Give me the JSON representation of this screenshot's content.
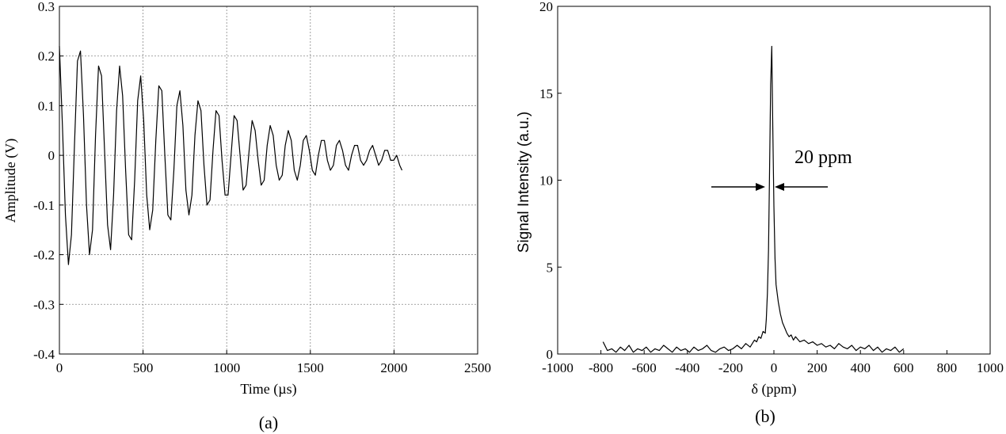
{
  "chart_data": [
    {
      "type": "line",
      "caption": "(a)",
      "xlabel": "Time (µs)",
      "ylabel": "Amplitude (V)",
      "xlim": [
        0,
        2500
      ],
      "ylim": [
        -0.4,
        0.3
      ],
      "x_ticks": [
        "0",
        "500",
        "1000",
        "1500",
        "2000",
        "2500"
      ],
      "y_ticks": [
        "-0.4",
        "-0.3",
        "-0.2",
        "-0.1",
        "0",
        "0.1",
        "0.2",
        "0.3"
      ],
      "grid": true,
      "series": [
        {
          "x": [
            0,
            18,
            36,
            54,
            72,
            90,
            108,
            126,
            144,
            162,
            180,
            198,
            216,
            234,
            252,
            270,
            288,
            306,
            324,
            342,
            360,
            378,
            396,
            414,
            432,
            450,
            468,
            486,
            504,
            522,
            540,
            558,
            576,
            594,
            612,
            630,
            648,
            666,
            684,
            702,
            720,
            738,
            756,
            774,
            792,
            810,
            828,
            846,
            864,
            882,
            900,
            918,
            936,
            954,
            972,
            990,
            1008,
            1026,
            1044,
            1062,
            1080,
            1098,
            1116,
            1134,
            1152,
            1170,
            1188,
            1206,
            1224,
            1242,
            1260,
            1278,
            1296,
            1314,
            1332,
            1350,
            1368,
            1386,
            1404,
            1422,
            1440,
            1458,
            1476,
            1494,
            1512,
            1530,
            1548,
            1566,
            1584,
            1602,
            1620,
            1638,
            1656,
            1674,
            1692,
            1710,
            1728,
            1746,
            1764,
            1782,
            1800,
            1818,
            1836,
            1854,
            1872,
            1890,
            1908,
            1926,
            1944,
            1962,
            1980,
            1998,
            2016,
            2034,
            2048
          ],
          "y": [
            0.22,
            0.06,
            -0.12,
            -0.22,
            -0.16,
            0.02,
            0.19,
            0.21,
            0.08,
            -0.1,
            -0.2,
            -0.15,
            0.04,
            0.18,
            0.16,
            0.01,
            -0.14,
            -0.19,
            -0.08,
            0.09,
            0.18,
            0.12,
            -0.03,
            -0.16,
            -0.17,
            -0.05,
            0.11,
            0.16,
            0.07,
            -0.08,
            -0.15,
            -0.11,
            0.03,
            0.14,
            0.13,
            0.0,
            -0.12,
            -0.13,
            -0.03,
            0.1,
            0.13,
            0.06,
            -0.07,
            -0.12,
            -0.08,
            0.04,
            0.11,
            0.09,
            -0.02,
            -0.1,
            -0.09,
            0.01,
            0.09,
            0.08,
            -0.01,
            -0.08,
            -0.08,
            0.0,
            0.08,
            0.07,
            0.0,
            -0.07,
            -0.06,
            0.01,
            0.07,
            0.05,
            -0.01,
            -0.06,
            -0.05,
            0.02,
            0.06,
            0.04,
            -0.02,
            -0.05,
            -0.04,
            0.02,
            0.05,
            0.03,
            -0.03,
            -0.05,
            -0.02,
            0.03,
            0.04,
            0.01,
            -0.03,
            -0.04,
            0.0,
            0.03,
            0.03,
            -0.01,
            -0.03,
            -0.02,
            0.02,
            0.03,
            0.01,
            -0.02,
            -0.03,
            0.0,
            0.02,
            0.02,
            -0.01,
            -0.02,
            -0.01,
            0.01,
            0.02,
            0.0,
            -0.02,
            -0.01,
            0.01,
            0.01,
            -0.01,
            -0.01,
            0.0,
            -0.02,
            -0.03
          ]
        }
      ]
    },
    {
      "type": "line",
      "caption": "(b)",
      "xlabel": "δ (ppm)",
      "ylabel": "Signal Intensity (a.u.)",
      "xlim": [
        -1000,
        1000
      ],
      "ylim": [
        0,
        20
      ],
      "x_ticks": [
        "-1000",
        "-800",
        "-600",
        "-400",
        "-200",
        "0",
        "200",
        "400",
        "600",
        "800",
        "1000"
      ],
      "y_ticks": [
        "0",
        "5",
        "10",
        "15",
        "20"
      ],
      "grid": false,
      "annotation": "20 ppm",
      "series": [
        {
          "x": [
            -790,
            -770,
            -750,
            -730,
            -710,
            -690,
            -670,
            -650,
            -630,
            -610,
            -590,
            -570,
            -550,
            -530,
            -510,
            -490,
            -470,
            -450,
            -430,
            -410,
            -390,
            -370,
            -350,
            -330,
            -310,
            -290,
            -270,
            -250,
            -230,
            -210,
            -190,
            -170,
            -150,
            -130,
            -110,
            -90,
            -80,
            -70,
            -60,
            -50,
            -40,
            -35,
            -30,
            -25,
            -20,
            -15,
            -10,
            -5,
            0,
            5,
            10,
            20,
            30,
            40,
            50,
            60,
            70,
            80,
            90,
            100,
            120,
            140,
            160,
            180,
            200,
            220,
            240,
            260,
            280,
            300,
            320,
            340,
            360,
            380,
            400,
            420,
            440,
            460,
            480,
            500,
            520,
            540,
            560,
            580,
            600
          ],
          "y": [
            0.7,
            0.2,
            0.3,
            0.1,
            0.4,
            0.2,
            0.5,
            0.1,
            0.3,
            0.2,
            0.4,
            0.1,
            0.3,
            0.2,
            0.5,
            0.3,
            0.1,
            0.4,
            0.2,
            0.3,
            0.1,
            0.4,
            0.2,
            0.3,
            0.5,
            0.2,
            0.1,
            0.3,
            0.4,
            0.2,
            0.3,
            0.5,
            0.3,
            0.6,
            0.4,
            0.8,
            0.7,
            1.0,
            0.9,
            1.3,
            1.2,
            2.0,
            3.5,
            6.0,
            10.5,
            15.5,
            17.7,
            13.0,
            8.5,
            5.5,
            4.0,
            3.0,
            2.3,
            1.8,
            1.5,
            1.2,
            1.0,
            1.1,
            0.8,
            1.0,
            0.7,
            0.8,
            0.6,
            0.7,
            0.5,
            0.6,
            0.4,
            0.5,
            0.3,
            0.6,
            0.4,
            0.3,
            0.5,
            0.2,
            0.4,
            0.3,
            0.5,
            0.2,
            0.4,
            0.1,
            0.3,
            0.2,
            0.4,
            0.1,
            0.3
          ]
        }
      ]
    }
  ]
}
